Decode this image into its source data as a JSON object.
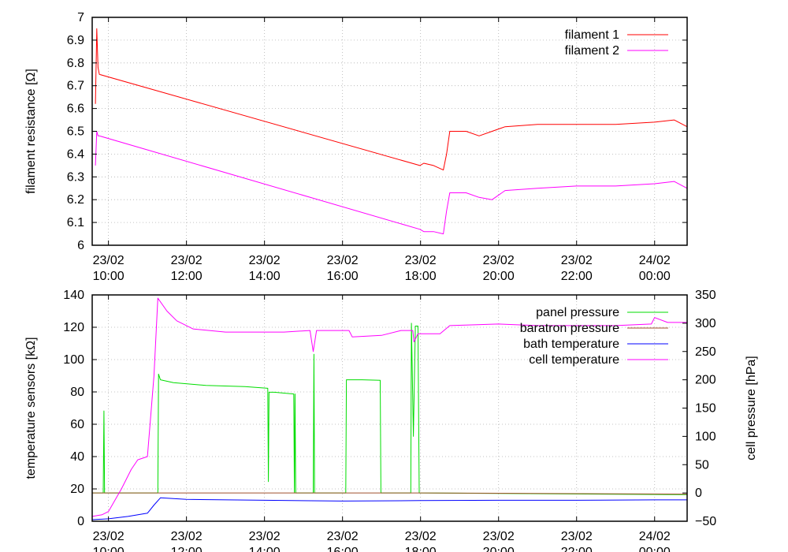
{
  "chart_data": [
    {
      "type": "line",
      "ylabel": "filament resistance [Ω]",
      "ylim": [
        6,
        7
      ],
      "yticks": [
        "6",
        "6.1",
        "6.2",
        "6.3",
        "6.4",
        "6.5",
        "6.6",
        "6.7",
        "6.8",
        "6.9",
        "7"
      ],
      "xlim": [
        "23/02 09:35",
        "24/02 00:50"
      ],
      "xticks": [
        {
          "date": "23/02",
          "time": "10:00"
        },
        {
          "date": "23/02",
          "time": "12:00"
        },
        {
          "date": "23/02",
          "time": "14:00"
        },
        {
          "date": "23/02",
          "time": "16:00"
        },
        {
          "date": "23/02",
          "time": "18:00"
        },
        {
          "date": "23/02",
          "time": "20:00"
        },
        {
          "date": "23/02",
          "time": "22:00"
        },
        {
          "date": "24/02",
          "time": "00:00"
        }
      ],
      "grid": true,
      "legend_position": "top-right",
      "series": [
        {
          "name": "filament 1",
          "color": "#ff0000",
          "x": [
            "23/02 09:40",
            "23/02 09:42",
            "23/02 09:44",
            "23/02 09:46",
            "23/02 17:59",
            "23/02 18:05",
            "23/02 18:20",
            "23/02 18:35",
            "23/02 18:40",
            "23/02 18:45",
            "23/02 19:10",
            "23/02 19:30",
            "23/02 19:50",
            "23/02 20:10",
            "23/02 21:00",
            "23/02 22:00",
            "23/02 23:00",
            "24/02 00:00",
            "24/02 00:30",
            "24/02 00:50"
          ],
          "y": [
            6.62,
            6.95,
            6.78,
            6.75,
            6.35,
            6.36,
            6.35,
            6.33,
            6.4,
            6.5,
            6.5,
            6.48,
            6.5,
            6.52,
            6.53,
            6.53,
            6.53,
            6.54,
            6.55,
            6.52
          ]
        },
        {
          "name": "filament 2",
          "color": "#ff00ff",
          "x": [
            "23/02 09:40",
            "23/02 09:42",
            "23/02 09:44",
            "23/02 09:46",
            "23/02 17:59",
            "23/02 18:05",
            "23/02 18:20",
            "23/02 18:35",
            "23/02 18:40",
            "23/02 18:45",
            "23/02 19:10",
            "23/02 19:30",
            "23/02 19:50",
            "23/02 20:10",
            "23/02 21:00",
            "23/02 22:00",
            "23/02 23:00",
            "24/02 00:00",
            "24/02 00:30",
            "24/02 00:50"
          ],
          "y": [
            6.35,
            6.5,
            6.48,
            6.48,
            6.07,
            6.06,
            6.06,
            6.05,
            6.15,
            6.23,
            6.23,
            6.21,
            6.2,
            6.24,
            6.25,
            6.26,
            6.26,
            6.27,
            6.28,
            6.25
          ]
        }
      ]
    },
    {
      "type": "line",
      "ylabel": "temperature sensors [kΩ]",
      "ylim": [
        0,
        140
      ],
      "yticks": [
        "0",
        "20",
        "40",
        "60",
        "80",
        "100",
        "120",
        "140"
      ],
      "y2label": "cell pressure [hPa]",
      "y2lim": [
        -50,
        350
      ],
      "y2ticks": [
        "−50",
        "0",
        "50",
        "100",
        "150",
        "200",
        "250",
        "300",
        "350"
      ],
      "xlim": [
        "23/02 09:35",
        "24/02 00:50"
      ],
      "xticks": [
        {
          "date": "23/02",
          "time": "10:00"
        },
        {
          "date": "23/02",
          "time": "12:00"
        },
        {
          "date": "23/02",
          "time": "14:00"
        },
        {
          "date": "23/02",
          "time": "16:00"
        },
        {
          "date": "23/02",
          "time": "18:00"
        },
        {
          "date": "23/02",
          "time": "20:00"
        },
        {
          "date": "23/02",
          "time": "22:00"
        },
        {
          "date": "24/02",
          "time": "00:00"
        }
      ],
      "grid": true,
      "legend_position": "top-right",
      "series": [
        {
          "name": "panel pressure",
          "color": "#00dd00",
          "axis": "y2",
          "x": [
            "23/02 09:35",
            "23/02 09:52",
            "23/02 09:53",
            "23/02 09:54",
            "23/02 11:16",
            "23/02 11:17",
            "23/02 11:20",
            "23/02 11:40",
            "23/02 12:30",
            "23/02 13:30",
            "23/02 14:05",
            "23/02 14:06",
            "23/02 14:07",
            "23/02 14:15",
            "23/02 14:45",
            "23/02 14:46",
            "23/02 14:47",
            "23/02 14:48",
            "23/02 15:15",
            "23/02 15:16",
            "23/02 15:17",
            "23/02 16:05",
            "23/02 16:06",
            "23/02 16:30",
            "23/02 16:58",
            "23/02 16:59",
            "23/02 17:45",
            "23/02 17:46",
            "23/02 17:49",
            "23/02 17:52",
            "23/02 17:56",
            "23/02 17:58",
            "24/02 00:50"
          ],
          "y": [
            0,
            0,
            145,
            0,
            0,
            210,
            200,
            195,
            190,
            188,
            185,
            20,
            178,
            178,
            175,
            0,
            175,
            0,
            0,
            245,
            0,
            0,
            200,
            200,
            199,
            0,
            0,
            300,
            100,
            295,
            295,
            0,
            -3
          ]
        },
        {
          "name": "baratron pressure",
          "color": "#a0522d",
          "axis": "y2",
          "x": [
            "23/02 09:35",
            "23/02 18:00",
            "24/02 00:50"
          ],
          "y": [
            0,
            0,
            -2
          ]
        },
        {
          "name": "bath temperature",
          "color": "#0000ff",
          "axis": "y",
          "x": [
            "23/02 09:35",
            "23/02 10:00",
            "23/02 10:30",
            "23/02 11:00",
            "23/02 11:10",
            "23/02 11:20",
            "23/02 12:00",
            "23/02 14:00",
            "23/02 16:00",
            "23/02 18:00",
            "23/02 20:00",
            "23/02 22:00",
            "24/02 00:00",
            "24/02 00:50"
          ],
          "y": [
            1,
            1.5,
            3,
            5,
            10,
            14.5,
            13.5,
            13,
            12.5,
            12.8,
            13,
            13,
            13.2,
            13.2
          ]
        },
        {
          "name": "cell temperature",
          "color": "#ff00ff",
          "axis": "y",
          "x": [
            "23/02 09:35",
            "23/02 09:50",
            "23/02 10:00",
            "23/02 10:20",
            "23/02 10:35",
            "23/02 10:45",
            "23/02 11:00",
            "23/02 11:10",
            "23/02 11:16",
            "23/02 11:30",
            "23/02 11:45",
            "23/02 12:10",
            "23/02 13:00",
            "23/02 14:00",
            "23/02 14:30",
            "23/02 15:10",
            "23/02 15:15",
            "23/02 15:20",
            "23/02 16:10",
            "23/02 16:15",
            "23/02 17:00",
            "23/02 17:30",
            "23/02 17:48",
            "23/02 17:50",
            "23/02 17:56",
            "23/02 18:30",
            "23/02 18:45",
            "23/02 20:00",
            "23/02 21:00",
            "23/02 22:00",
            "23/02 23:00",
            "23/02 23:55",
            "24/02 00:00",
            "24/02 00:20",
            "24/02 00:50"
          ],
          "y": [
            3,
            4,
            6,
            20,
            32,
            38,
            40,
            90,
            138,
            130,
            124,
            119,
            117,
            117,
            117,
            118,
            105,
            118,
            118,
            114,
            115,
            118,
            118,
            111,
            116,
            116,
            121,
            122,
            121,
            121,
            121,
            122,
            126,
            123,
            123
          ]
        }
      ]
    }
  ]
}
